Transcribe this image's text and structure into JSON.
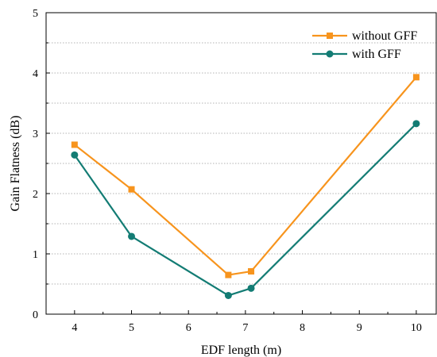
{
  "chart_data": {
    "type": "line",
    "title": "",
    "xlabel": "EDF length (m)",
    "ylabel": "Gain Flatness (dB)",
    "xlim": [
      3.5,
      10.35
    ],
    "ylim": [
      0,
      5
    ],
    "xticks": [
      4,
      5,
      6,
      7,
      8,
      9,
      10
    ],
    "yticks": [
      0,
      1,
      2,
      3,
      4,
      5
    ],
    "grid": "horizontal dotted",
    "legend_position": "top-right",
    "series": [
      {
        "name": "without GFF",
        "color": "#F7941D",
        "marker": "square",
        "x": [
          4,
          5,
          6.7,
          7.1,
          10
        ],
        "y": [
          2.81,
          2.07,
          0.65,
          0.71,
          3.93
        ]
      },
      {
        "name": "with GFF",
        "color": "#137C74",
        "marker": "circle",
        "x": [
          4,
          5,
          6.7,
          7.1,
          10
        ],
        "y": [
          2.64,
          1.29,
          0.31,
          0.43,
          3.16
        ]
      }
    ]
  }
}
